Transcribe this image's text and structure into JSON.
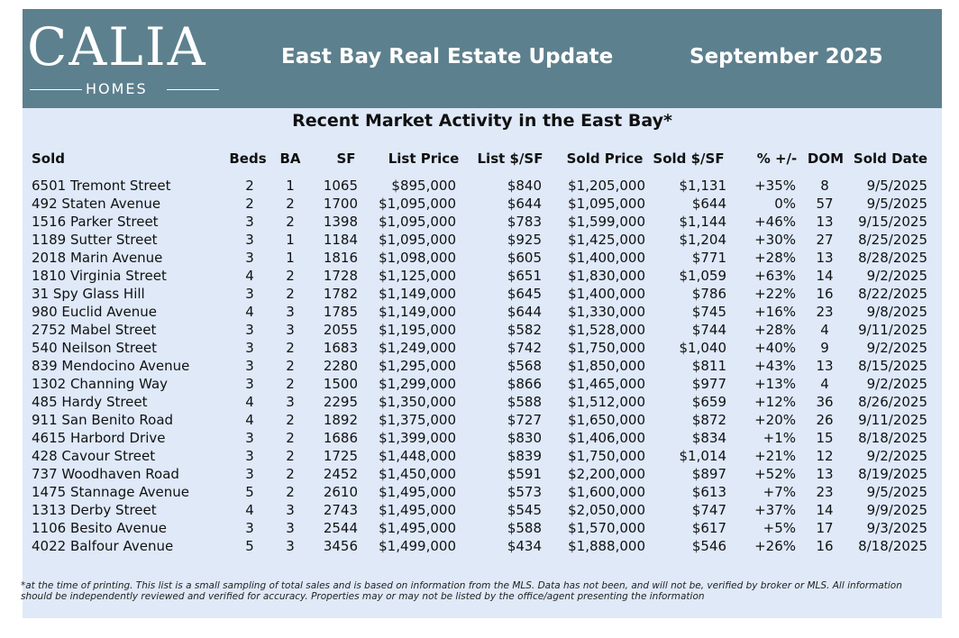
{
  "header": {
    "logo": "CALIA",
    "logo_sub": "HOMES",
    "title": "East Bay Real Estate Update",
    "date": "September 2025"
  },
  "table": {
    "title": "Recent Market Activity in the East Bay*",
    "columns": [
      "Sold",
      "Beds",
      "BA",
      "SF",
      "List Price",
      "List $/SF",
      "Sold Price",
      "Sold $/SF",
      "% +/-",
      "DOM",
      "Sold Date"
    ],
    "rows": [
      [
        "6501 Tremont Street",
        "2",
        "1",
        "1065",
        "$895,000",
        "$840",
        "$1,205,000",
        "$1,131",
        "+35%",
        "8",
        "9/5/2025"
      ],
      [
        "492 Staten Avenue",
        "2",
        "2",
        "1700",
        "$1,095,000",
        "$644",
        "$1,095,000",
        "$644",
        "0%",
        "57",
        "9/5/2025"
      ],
      [
        "1516 Parker Street",
        "3",
        "2",
        "1398",
        "$1,095,000",
        "$783",
        "$1,599,000",
        "$1,144",
        "+46%",
        "13",
        "9/15/2025"
      ],
      [
        "1189 Sutter Street",
        "3",
        "1",
        "1184",
        "$1,095,000",
        "$925",
        "$1,425,000",
        "$1,204",
        "+30%",
        "27",
        "8/25/2025"
      ],
      [
        "2018 Marin Avenue",
        "3",
        "1",
        "1816",
        "$1,098,000",
        "$605",
        "$1,400,000",
        "$771",
        "+28%",
        "13",
        "8/28/2025"
      ],
      [
        "1810 Virginia Street",
        "4",
        "2",
        "1728",
        "$1,125,000",
        "$651",
        "$1,830,000",
        "$1,059",
        "+63%",
        "14",
        "9/2/2025"
      ],
      [
        "31 Spy Glass Hill",
        "3",
        "2",
        "1782",
        "$1,149,000",
        "$645",
        "$1,400,000",
        "$786",
        "+22%",
        "16",
        "8/22/2025"
      ],
      [
        "980 Euclid Avenue",
        "4",
        "3",
        "1785",
        "$1,149,000",
        "$644",
        "$1,330,000",
        "$745",
        "+16%",
        "23",
        "9/8/2025"
      ],
      [
        "2752 Mabel Street",
        "3",
        "3",
        "2055",
        "$1,195,000",
        "$582",
        "$1,528,000",
        "$744",
        "+28%",
        "4",
        "9/11/2025"
      ],
      [
        "540 Neilson Street",
        "3",
        "2",
        "1683",
        "$1,249,000",
        "$742",
        "$1,750,000",
        "$1,040",
        "+40%",
        "9",
        "9/2/2025"
      ],
      [
        "839 Mendocino Avenue",
        "3",
        "2",
        "2280",
        "$1,295,000",
        "$568",
        "$1,850,000",
        "$811",
        "+43%",
        "13",
        "8/15/2025"
      ],
      [
        "1302 Channing Way",
        "3",
        "2",
        "1500",
        "$1,299,000",
        "$866",
        "$1,465,000",
        "$977",
        "+13%",
        "4",
        "9/2/2025"
      ],
      [
        "485 Hardy Street",
        "4",
        "3",
        "2295",
        "$1,350,000",
        "$588",
        "$1,512,000",
        "$659",
        "+12%",
        "36",
        "8/26/2025"
      ],
      [
        "911 San Benito Road",
        "4",
        "2",
        "1892",
        "$1,375,000",
        "$727",
        "$1,650,000",
        "$872",
        "+20%",
        "26",
        "9/11/2025"
      ],
      [
        "4615 Harbord Drive",
        "3",
        "2",
        "1686",
        "$1,399,000",
        "$830",
        "$1,406,000",
        "$834",
        "+1%",
        "15",
        "8/18/2025"
      ],
      [
        "428 Cavour Street",
        "3",
        "2",
        "1725",
        "$1,448,000",
        "$839",
        "$1,750,000",
        "$1,014",
        "+21%",
        "12",
        "9/2/2025"
      ],
      [
        "737 Woodhaven Road",
        "3",
        "2",
        "2452",
        "$1,450,000",
        "$591",
        "$2,200,000",
        "$897",
        "+52%",
        "13",
        "8/19/2025"
      ],
      [
        "1475 Stannage Avenue",
        "5",
        "2",
        "2610",
        "$1,495,000",
        "$573",
        "$1,600,000",
        "$613",
        "+7%",
        "23",
        "9/5/2025"
      ],
      [
        "1313 Derby Street",
        "4",
        "3",
        "2743",
        "$1,495,000",
        "$545",
        "$2,050,000",
        "$747",
        "+37%",
        "14",
        "9/9/2025"
      ],
      [
        "1106 Besito Avenue",
        "3",
        "3",
        "2544",
        "$1,495,000",
        "$588",
        "$1,570,000",
        "$617",
        "+5%",
        "17",
        "9/3/2025"
      ],
      [
        "4022 Balfour Avenue",
        "5",
        "3",
        "3456",
        "$1,499,000",
        "$434",
        "$1,888,000",
        "$546",
        "+26%",
        "16",
        "8/18/2025"
      ]
    ]
  },
  "footnote": [
    "*at the time of printing. This list is a small sampling of total sales and is based on information from the MLS. Data has not been, and will not be, verified by broker or MLS. All information",
    "should be independently reviewed and verified for accuracy. Properties may or may not be listed by the office/agent presenting the information"
  ]
}
